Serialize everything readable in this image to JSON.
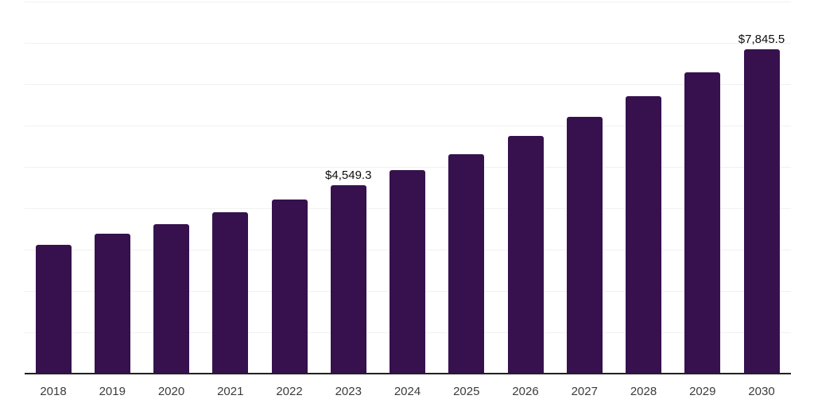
{
  "chart_data": {
    "type": "bar",
    "title": "",
    "xlabel": "",
    "ylabel": "",
    "categories": [
      "2018",
      "2019",
      "2020",
      "2021",
      "2022",
      "2023",
      "2024",
      "2025",
      "2026",
      "2027",
      "2028",
      "2029",
      "2030"
    ],
    "values": [
      3115,
      3385,
      3615,
      3905,
      4210,
      4549.3,
      4925,
      5310,
      5750,
      6210,
      6715,
      7290,
      7845.5
    ],
    "value_labels": {
      "2023": "$4,549.3",
      "2030": "$7,845.5"
    },
    "ylim": [
      0,
      9000
    ],
    "gridline_step": 1000,
    "grid": "horizontal",
    "legend_position": "none",
    "colors": {
      "bar": "#36114e",
      "gridline": "#f1f1f1",
      "axis_line": "#222222",
      "tick_label": "#3c3c3c",
      "value_label": "#0f0f0f",
      "background": "#ffffff"
    }
  }
}
